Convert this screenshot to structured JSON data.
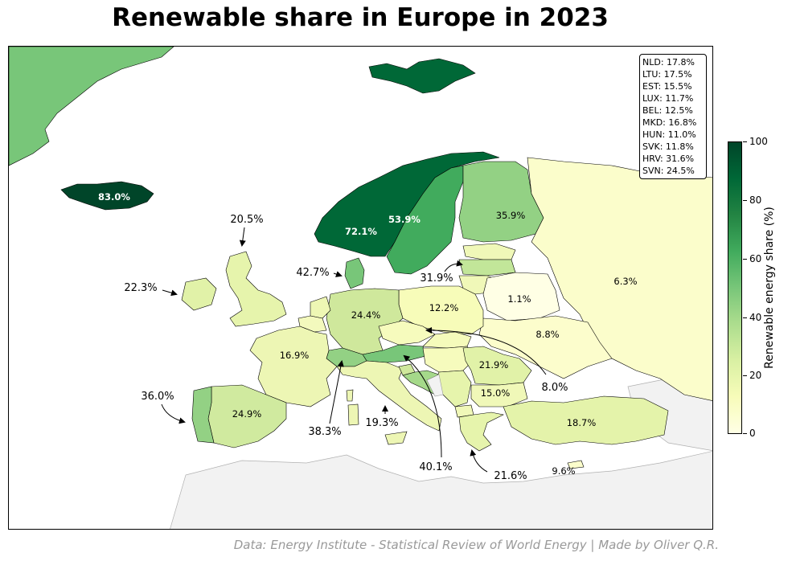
{
  "title": "Renewable share in Europe in 2023",
  "source": "Data: Energy Institute - Statistical Review of World Energy | Made by Oliver Q.R.",
  "colorbar": {
    "title": "Renewable energy share (%)",
    "ticks": [
      "100",
      "80",
      "60",
      "40",
      "20",
      "0"
    ],
    "colors": [
      "#ffffe5",
      "#f7fcb9",
      "#d9f0a3",
      "#addd8e",
      "#78c679",
      "#41ab5d",
      "#238443",
      "#006837",
      "#004529"
    ]
  },
  "legend_box": [
    "NLD: 17.8%",
    "LTU: 17.5%",
    "EST: 15.5%",
    "LUX: 11.7%",
    "BEL: 12.5%",
    "MKD: 16.8%",
    "HUN: 11.0%",
    "SVK: 11.8%",
    "HRV: 31.6%",
    "SVN: 24.5%"
  ],
  "country_labels": {
    "isl": "83.0%",
    "nor": "72.1%",
    "swe": "53.9%",
    "fin": "35.9%",
    "rus": "6.3%",
    "blr": "1.1%",
    "ukr": "8.8%",
    "pol": "12.2%",
    "deu": "24.4%",
    "fra": "16.9%",
    "esp": "24.9%",
    "rou": "21.9%",
    "bgr": "15.0%",
    "tur": "18.7%",
    "cyp": "9.6%"
  },
  "callouts": {
    "gbr": "20.5%",
    "irl": "22.3%",
    "dnk": "42.7%",
    "lva": "31.9%",
    "prt": "36.0%",
    "che": "38.3%",
    "ita": "19.3%",
    "aut": "40.1%",
    "grc": "21.6%",
    "cze": "8.0%"
  }
}
